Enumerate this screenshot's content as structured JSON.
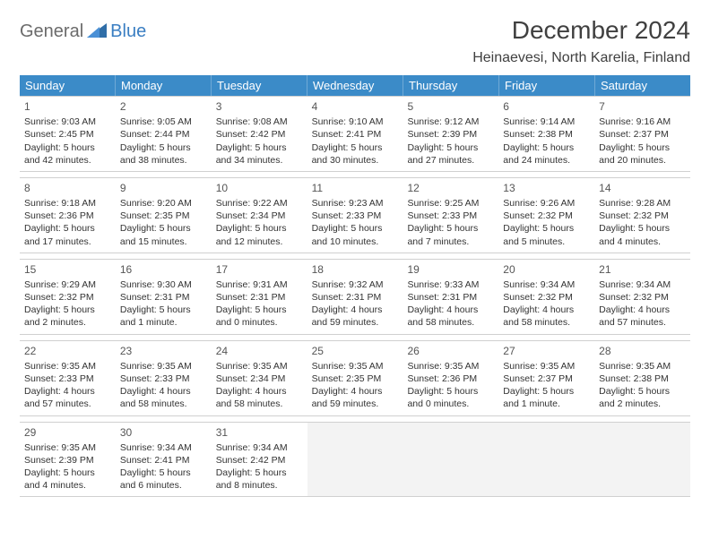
{
  "logo": {
    "word1": "General",
    "word2": "Blue"
  },
  "title": "December 2024",
  "location": "Heinaevesi, North Karelia, Finland",
  "colors": {
    "header_bg": "#3b8bc8",
    "header_border": "#6fa9d6",
    "row_border": "#d0d0d0",
    "empty_bg": "#f3f3f3",
    "logo_gray": "#6b6b6b",
    "logo_blue": "#3a7ec2"
  },
  "day_names": [
    "Sunday",
    "Monday",
    "Tuesday",
    "Wednesday",
    "Thursday",
    "Friday",
    "Saturday"
  ],
  "weeks": [
    [
      {
        "n": "1",
        "sunrise": "9:03 AM",
        "sunset": "2:45 PM",
        "daylight": "5 hours and 42 minutes."
      },
      {
        "n": "2",
        "sunrise": "9:05 AM",
        "sunset": "2:44 PM",
        "daylight": "5 hours and 38 minutes."
      },
      {
        "n": "3",
        "sunrise": "9:08 AM",
        "sunset": "2:42 PM",
        "daylight": "5 hours and 34 minutes."
      },
      {
        "n": "4",
        "sunrise": "9:10 AM",
        "sunset": "2:41 PM",
        "daylight": "5 hours and 30 minutes."
      },
      {
        "n": "5",
        "sunrise": "9:12 AM",
        "sunset": "2:39 PM",
        "daylight": "5 hours and 27 minutes."
      },
      {
        "n": "6",
        "sunrise": "9:14 AM",
        "sunset": "2:38 PM",
        "daylight": "5 hours and 24 minutes."
      },
      {
        "n": "7",
        "sunrise": "9:16 AM",
        "sunset": "2:37 PM",
        "daylight": "5 hours and 20 minutes."
      }
    ],
    [
      {
        "n": "8",
        "sunrise": "9:18 AM",
        "sunset": "2:36 PM",
        "daylight": "5 hours and 17 minutes."
      },
      {
        "n": "9",
        "sunrise": "9:20 AM",
        "sunset": "2:35 PM",
        "daylight": "5 hours and 15 minutes."
      },
      {
        "n": "10",
        "sunrise": "9:22 AM",
        "sunset": "2:34 PM",
        "daylight": "5 hours and 12 minutes."
      },
      {
        "n": "11",
        "sunrise": "9:23 AM",
        "sunset": "2:33 PM",
        "daylight": "5 hours and 10 minutes."
      },
      {
        "n": "12",
        "sunrise": "9:25 AM",
        "sunset": "2:33 PM",
        "daylight": "5 hours and 7 minutes."
      },
      {
        "n": "13",
        "sunrise": "9:26 AM",
        "sunset": "2:32 PM",
        "daylight": "5 hours and 5 minutes."
      },
      {
        "n": "14",
        "sunrise": "9:28 AM",
        "sunset": "2:32 PM",
        "daylight": "5 hours and 4 minutes."
      }
    ],
    [
      {
        "n": "15",
        "sunrise": "9:29 AM",
        "sunset": "2:32 PM",
        "daylight": "5 hours and 2 minutes."
      },
      {
        "n": "16",
        "sunrise": "9:30 AM",
        "sunset": "2:31 PM",
        "daylight": "5 hours and 1 minute."
      },
      {
        "n": "17",
        "sunrise": "9:31 AM",
        "sunset": "2:31 PM",
        "daylight": "5 hours and 0 minutes."
      },
      {
        "n": "18",
        "sunrise": "9:32 AM",
        "sunset": "2:31 PM",
        "daylight": "4 hours and 59 minutes."
      },
      {
        "n": "19",
        "sunrise": "9:33 AM",
        "sunset": "2:31 PM",
        "daylight": "4 hours and 58 minutes."
      },
      {
        "n": "20",
        "sunrise": "9:34 AM",
        "sunset": "2:32 PM",
        "daylight": "4 hours and 58 minutes."
      },
      {
        "n": "21",
        "sunrise": "9:34 AM",
        "sunset": "2:32 PM",
        "daylight": "4 hours and 57 minutes."
      }
    ],
    [
      {
        "n": "22",
        "sunrise": "9:35 AM",
        "sunset": "2:33 PM",
        "daylight": "4 hours and 57 minutes."
      },
      {
        "n": "23",
        "sunrise": "9:35 AM",
        "sunset": "2:33 PM",
        "daylight": "4 hours and 58 minutes."
      },
      {
        "n": "24",
        "sunrise": "9:35 AM",
        "sunset": "2:34 PM",
        "daylight": "4 hours and 58 minutes."
      },
      {
        "n": "25",
        "sunrise": "9:35 AM",
        "sunset": "2:35 PM",
        "daylight": "4 hours and 59 minutes."
      },
      {
        "n": "26",
        "sunrise": "9:35 AM",
        "sunset": "2:36 PM",
        "daylight": "5 hours and 0 minutes."
      },
      {
        "n": "27",
        "sunrise": "9:35 AM",
        "sunset": "2:37 PM",
        "daylight": "5 hours and 1 minute."
      },
      {
        "n": "28",
        "sunrise": "9:35 AM",
        "sunset": "2:38 PM",
        "daylight": "5 hours and 2 minutes."
      }
    ],
    [
      {
        "n": "29",
        "sunrise": "9:35 AM",
        "sunset": "2:39 PM",
        "daylight": "5 hours and 4 minutes."
      },
      {
        "n": "30",
        "sunrise": "9:34 AM",
        "sunset": "2:41 PM",
        "daylight": "5 hours and 6 minutes."
      },
      {
        "n": "31",
        "sunrise": "9:34 AM",
        "sunset": "2:42 PM",
        "daylight": "5 hours and 8 minutes."
      },
      null,
      null,
      null,
      null
    ]
  ],
  "labels": {
    "sunrise": "Sunrise:",
    "sunset": "Sunset:",
    "daylight": "Daylight:"
  }
}
